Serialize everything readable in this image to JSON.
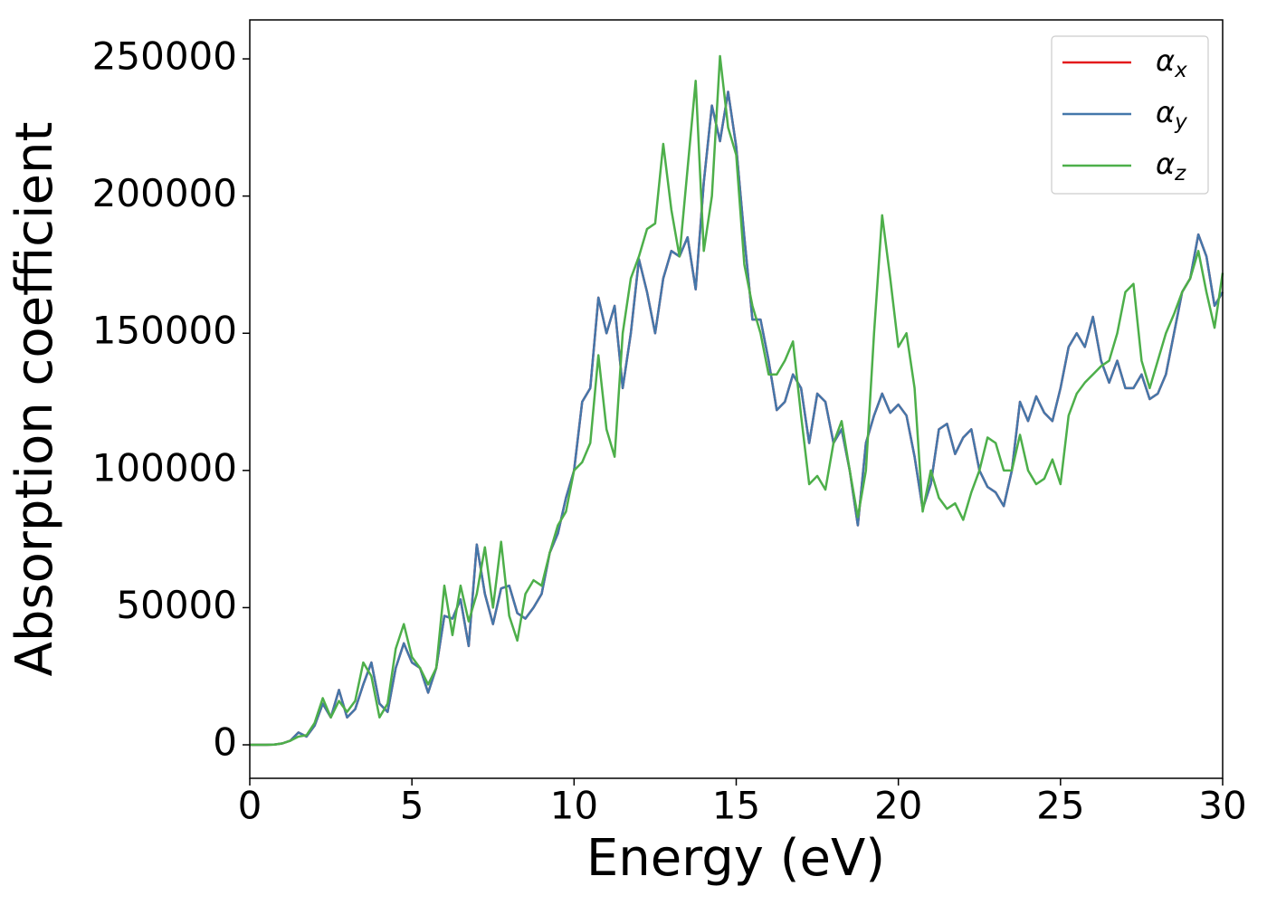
{
  "chart_data": {
    "type": "line",
    "xlabel": "Energy (eV)",
    "ylabel": "Absorption coefficient",
    "xlim": [
      0,
      30
    ],
    "xticks": [
      0,
      5,
      10,
      15,
      20,
      25,
      30
    ],
    "ylim": [
      -12200,
      264200
    ],
    "yticks": [
      0,
      50000,
      100000,
      150000,
      200000,
      250000
    ],
    "legend": "upper right",
    "grid": false,
    "x": [
      0,
      0.25,
      0.5,
      0.75,
      1,
      1.25,
      1.5,
      1.75,
      2,
      2.25,
      2.5,
      2.75,
      3,
      3.25,
      3.5,
      3.75,
      4,
      4.25,
      4.5,
      4.75,
      5,
      5.25,
      5.5,
      5.75,
      6,
      6.25,
      6.5,
      6.75,
      7,
      7.25,
      7.5,
      7.75,
      8,
      8.25,
      8.5,
      8.75,
      9,
      9.25,
      9.5,
      9.75,
      10,
      10.25,
      10.5,
      10.75,
      11,
      11.25,
      11.5,
      11.75,
      12,
      12.25,
      12.5,
      12.75,
      13,
      13.25,
      13.5,
      13.75,
      14,
      14.25,
      14.5,
      14.75,
      15,
      15.25,
      15.5,
      15.75,
      16,
      16.25,
      16.5,
      16.75,
      17,
      17.25,
      17.5,
      17.75,
      18,
      18.25,
      18.5,
      18.75,
      19,
      19.25,
      19.5,
      19.75,
      20,
      20.25,
      20.5,
      20.75,
      21,
      21.25,
      21.5,
      21.75,
      22,
      22.25,
      22.5,
      22.75,
      23,
      23.25,
      23.5,
      23.75,
      24,
      24.25,
      24.5,
      24.75,
      25,
      25.25,
      25.5,
      25.75,
      26,
      26.25,
      26.5,
      26.75,
      27,
      27.25,
      27.5,
      27.75,
      28,
      28.25,
      28.5,
      28.75,
      29,
      29.25,
      29.5,
      29.75,
      30
    ],
    "series": [
      {
        "name": "αx",
        "color": "#e41a1c",
        "values": [
          0,
          0,
          0,
          100,
          500,
          1500,
          4500,
          3000,
          7000,
          15000,
          10000,
          20000,
          10000,
          13000,
          22000,
          30000,
          15000,
          12000,
          28000,
          37000,
          30000,
          28000,
          19000,
          28000,
          47000,
          46000,
          53000,
          36000,
          73000,
          55000,
          44000,
          57000,
          58000,
          48000,
          46000,
          50000,
          55000,
          70000,
          77000,
          90000,
          100000,
          125000,
          130000,
          163000,
          150000,
          160000,
          130000,
          150000,
          177000,
          165000,
          150000,
          170000,
          180000,
          178000,
          185000,
          166000,
          205000,
          233000,
          220000,
          238000,
          218000,
          185000,
          155000,
          155000,
          140000,
          122000,
          125000,
          135000,
          130000,
          110000,
          128000,
          125000,
          110000,
          115000,
          100000,
          80000,
          110000,
          120000,
          128000,
          121000,
          124000,
          120000,
          105000,
          86000,
          95000,
          115000,
          117000,
          106000,
          112000,
          115000,
          100000,
          94000,
          92000,
          87000,
          100000,
          125000,
          118000,
          127000,
          121000,
          118000,
          130000,
          145000,
          150000,
          145000,
          156000,
          140000,
          132000,
          140000,
          130000,
          130000,
          135000,
          126000,
          128000,
          135000,
          150000,
          165000,
          170000,
          186000,
          178000,
          160000,
          165000
        ]
      },
      {
        "name": "αy",
        "color": "#4477aa",
        "values": [
          0,
          0,
          0,
          100,
          500,
          1500,
          4500,
          3000,
          7000,
          15000,
          10000,
          20000,
          10000,
          13000,
          22000,
          30000,
          15000,
          12000,
          28000,
          37000,
          30000,
          28000,
          19000,
          28000,
          47000,
          46000,
          53000,
          36000,
          73000,
          55000,
          44000,
          57000,
          58000,
          48000,
          46000,
          50000,
          55000,
          70000,
          77000,
          90000,
          100000,
          125000,
          130000,
          163000,
          150000,
          160000,
          130000,
          150000,
          177000,
          165000,
          150000,
          170000,
          180000,
          178000,
          185000,
          166000,
          205000,
          233000,
          220000,
          238000,
          218000,
          185000,
          155000,
          155000,
          140000,
          122000,
          125000,
          135000,
          130000,
          110000,
          128000,
          125000,
          110000,
          115000,
          100000,
          80000,
          110000,
          120000,
          128000,
          121000,
          124000,
          120000,
          105000,
          86000,
          95000,
          115000,
          117000,
          106000,
          112000,
          115000,
          100000,
          94000,
          92000,
          87000,
          100000,
          125000,
          118000,
          127000,
          121000,
          118000,
          130000,
          145000,
          150000,
          145000,
          156000,
          140000,
          132000,
          140000,
          130000,
          130000,
          135000,
          126000,
          128000,
          135000,
          150000,
          165000,
          170000,
          186000,
          178000,
          160000,
          165000
        ]
      },
      {
        "name": "αz",
        "color": "#4daf4a",
        "values": [
          0,
          0,
          0,
          100,
          500,
          1500,
          3000,
          3500,
          8000,
          17000,
          10000,
          16000,
          12000,
          16000,
          30000,
          25000,
          10000,
          15000,
          35000,
          44000,
          32000,
          28000,
          22000,
          28000,
          58000,
          40000,
          58000,
          45000,
          55000,
          72000,
          50000,
          74000,
          47000,
          38000,
          55000,
          60000,
          58000,
          70000,
          80000,
          85000,
          100000,
          103000,
          110000,
          142000,
          115000,
          105000,
          150000,
          170000,
          178000,
          188000,
          190000,
          219000,
          195000,
          178000,
          210000,
          242000,
          180000,
          200000,
          251000,
          225000,
          215000,
          175000,
          160000,
          150000,
          135000,
          135000,
          140000,
          147000,
          120000,
          95000,
          98000,
          93000,
          110000,
          118000,
          100000,
          83000,
          100000,
          150000,
          193000,
          170000,
          145000,
          150000,
          130000,
          85000,
          100000,
          90000,
          86000,
          88000,
          82000,
          92000,
          100000,
          112000,
          110000,
          100000,
          100000,
          113000,
          100000,
          95000,
          97000,
          104000,
          95000,
          120000,
          128000,
          132000,
          135000,
          138000,
          140000,
          150000,
          165000,
          168000,
          140000,
          130000,
          140000,
          150000,
          157000,
          165000,
          170000,
          180000,
          165000,
          152000,
          172000
        ]
      }
    ]
  }
}
